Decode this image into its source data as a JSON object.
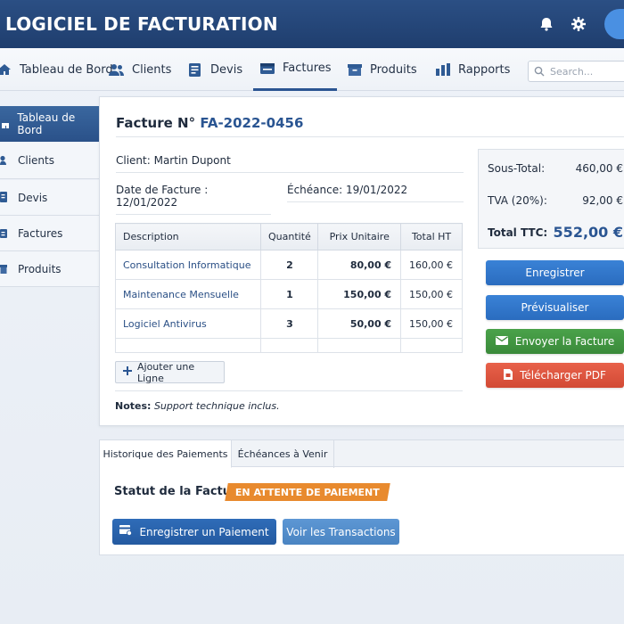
{
  "app": {
    "title": "LOGICIEL DE FACTURATION"
  },
  "header_icons": [
    "bell-icon",
    "gear-icon",
    "avatar"
  ],
  "nav": {
    "items": [
      {
        "label": "Tableau de Bord",
        "icon": "home-icon"
      },
      {
        "label": "Clients",
        "icon": "users-icon"
      },
      {
        "label": "Devis",
        "icon": "document-icon"
      },
      {
        "label": "Factures",
        "icon": "invoice-icon",
        "active": true
      },
      {
        "label": "Produits",
        "icon": "box-icon"
      },
      {
        "label": "Rapports",
        "icon": "bar-chart-icon"
      }
    ],
    "search_placeholder": "Search..."
  },
  "sidebar": {
    "items": [
      {
        "label": "Tableau de Bord",
        "icon": "home-icon",
        "active": true
      },
      {
        "label": "Clients",
        "icon": "user-icon"
      },
      {
        "label": "Devis",
        "icon": "document-icon"
      },
      {
        "label": "Factures",
        "icon": "invoice-icon"
      },
      {
        "label": "Produits",
        "icon": "box-icon"
      }
    ]
  },
  "invoice": {
    "title_prefix": "Facture N°",
    "number": "FA-2022-0456",
    "client": "Client:  Martin Dupont",
    "date": "Date de Facture :  12/01/2022",
    "due": "Échéance:  19/01/2022",
    "table": {
      "headers": [
        "Description",
        "Quantité",
        "Prix Unitaire",
        "Total HT"
      ],
      "rows": [
        {
          "description": "Consultation Informatique",
          "quantity": "2",
          "unit_price": "80,00 €",
          "total": "160,00 €"
        },
        {
          "description": "Maintenance Mensuelle",
          "quantity": "1",
          "unit_price": "150,00 €",
          "total": "150,00 €"
        },
        {
          "description": "Logiciel Antivirus",
          "quantity": "3",
          "unit_price": "50,00 €",
          "total": "150,00 €"
        }
      ]
    },
    "add_line_label": "Ajouter une Ligne",
    "notes_label": "Notes:",
    "notes_text": "Support technique inclus."
  },
  "totals": {
    "subtotal_label": "Sous-Total:",
    "subtotal_value": "460,00 €",
    "tax_label": "TVA (20%):",
    "tax_value": "92,00 €",
    "total_label": "Total TTC:",
    "total_value": "552,00 €"
  },
  "actions": {
    "save": "Enregistrer",
    "preview": "Prévisualiser",
    "send": "Envoyer la Facture",
    "download": "Télécharger PDF"
  },
  "payments": {
    "tabs": [
      "Historique des Paiements",
      "Échéances à Venir"
    ],
    "status_label": "Statut de la Facture:",
    "status_value": "EN ATTENTE DE PAIEMENT",
    "record_payment": "Enregistrer un Paiement",
    "view_transactions": "Voir les Transactions"
  },
  "colors": {
    "header_bg": "#1f3e6e",
    "accent": "#2a5592",
    "btn_blue": "#2a6cbf",
    "btn_green": "#3a8a3a",
    "btn_red": "#d24a35",
    "status_orange": "#e88a2e"
  }
}
